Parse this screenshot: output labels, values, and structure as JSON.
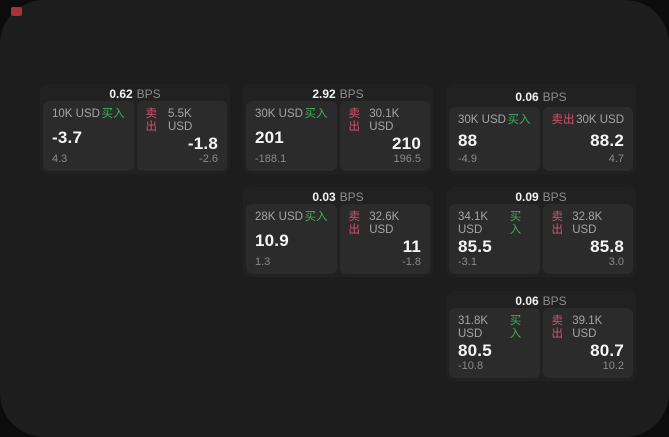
{
  "app": {
    "bps_unit": "BPS",
    "buy_label": "买入",
    "sell_label": "卖出"
  },
  "colors": {
    "backdrop": "#0c0c0c",
    "screen_bg": "#1d1d1d",
    "card_bg": "#212121",
    "panel_bg": "#2b2b2b",
    "buy_green": "#3bb05a",
    "sell_red": "#d6506e",
    "marker_red": "#a53430"
  },
  "cards": [
    {
      "row": 1,
      "col": 1,
      "spread": "0.62",
      "buy": {
        "amount": "10K USD",
        "price": "-3.7",
        "secondary": "4.3"
      },
      "sell": {
        "amount": "5.5K USD",
        "price": "-1.8",
        "secondary": "-2.6"
      }
    },
    {
      "row": 1,
      "col": 2,
      "spread": "2.92",
      "buy": {
        "amount": "30K USD",
        "price": "201",
        "secondary": "-188.1"
      },
      "sell": {
        "amount": "30.1K USD",
        "price": "210",
        "secondary": "196.5"
      }
    },
    {
      "row": 1,
      "col": 3,
      "spread": "0.06",
      "buy": {
        "amount": "30K USD",
        "price": "88",
        "secondary": "-4.9"
      },
      "sell": {
        "amount": "30K USD",
        "price": "88.2",
        "secondary": "4.7"
      }
    },
    {
      "row": 2,
      "col": 2,
      "spread": "0.03",
      "buy": {
        "amount": "28K USD",
        "price": "10.9",
        "secondary": "1.3"
      },
      "sell": {
        "amount": "32.6K USD",
        "price": "11",
        "secondary": "-1.8"
      }
    },
    {
      "row": 2,
      "col": 3,
      "spread": "0.09",
      "buy": {
        "amount": "34.1K USD",
        "price": "85.5",
        "secondary": "-3.1"
      },
      "sell": {
        "amount": "32.8K USD",
        "price": "85.8",
        "secondary": "3.0"
      }
    },
    {
      "row": 3,
      "col": 3,
      "spread": "0.06",
      "buy": {
        "amount": "31.8K USD",
        "price": "80.5",
        "secondary": "-10.8"
      },
      "sell": {
        "amount": "39.1K USD",
        "price": "80.7",
        "secondary": "10.2"
      }
    }
  ]
}
